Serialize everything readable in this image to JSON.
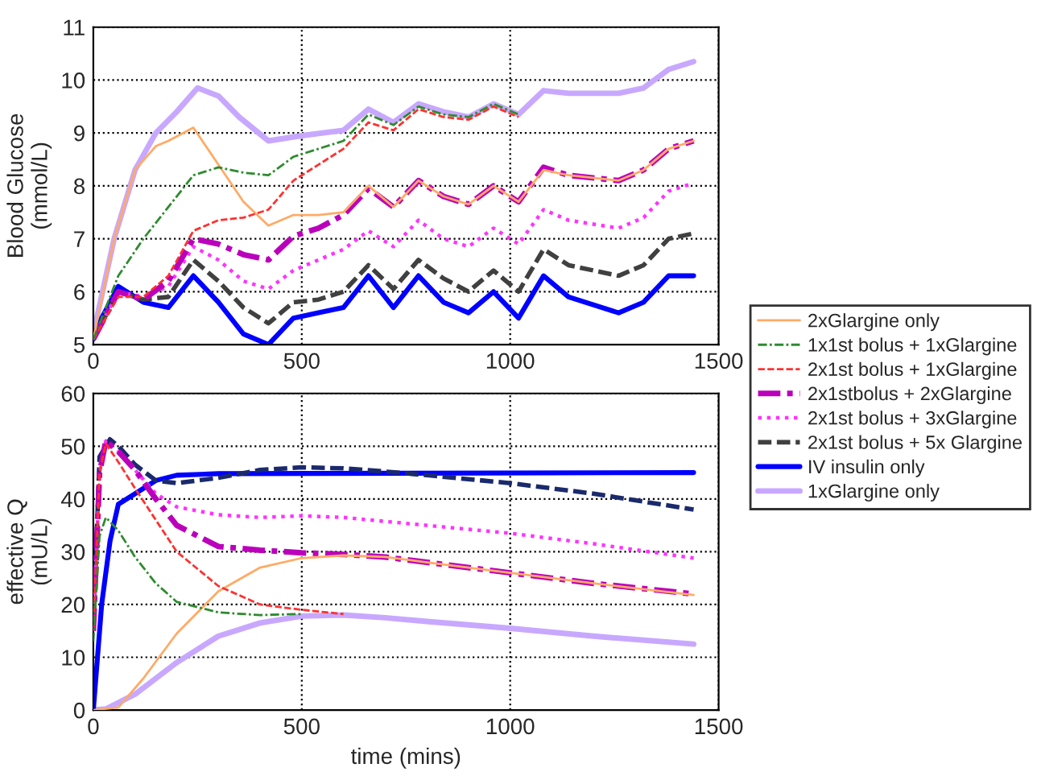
{
  "chart_data": [
    {
      "type": "line",
      "ylabel": "Blood Glucose\n(mmol/L)",
      "xlim": [
        0,
        1500
      ],
      "xticks": [
        0,
        500,
        1000,
        1500
      ],
      "ylim": [
        5,
        11
      ],
      "yticks": [
        5,
        6,
        7,
        8,
        9,
        10,
        11
      ],
      "grid": true,
      "legend": "right",
      "series": [
        {
          "name": "2xGlargine only",
          "color": "#ffaa66",
          "line_style": "solid",
          "x": [
            0,
            50,
            100,
            150,
            180,
            240,
            300,
            360,
            420,
            480,
            540,
            600,
            660,
            720,
            780,
            840,
            900,
            960,
            1020,
            1080,
            1140,
            1260,
            1320,
            1380,
            1440
          ],
          "values": [
            5.1,
            7.0,
            8.3,
            8.75,
            8.85,
            9.1,
            8.4,
            7.7,
            7.25,
            7.45,
            7.45,
            7.5,
            8.0,
            7.6,
            8.1,
            7.8,
            7.65,
            8.0,
            7.7,
            8.3,
            8.2,
            8.1,
            8.3,
            8.7,
            8.85
          ]
        },
        {
          "name": "1x1st bolus + 1xGlargine",
          "color": "#2e8b2e",
          "line_style": "dashdot",
          "x": [
            0,
            60,
            120,
            180,
            240,
            300,
            360,
            420,
            480,
            540,
            600,
            660,
            720,
            780,
            840,
            900,
            960,
            1020
          ],
          "values": [
            5.1,
            6.3,
            7.0,
            7.6,
            8.2,
            8.35,
            8.25,
            8.2,
            8.55,
            8.7,
            8.85,
            9.35,
            9.15,
            9.5,
            9.35,
            9.3,
            9.55,
            9.35
          ]
        },
        {
          "name": "2x1st bolus + 1xGlargine",
          "color": "#ff3030",
          "line_style": "dashed",
          "x": [
            0,
            60,
            120,
            180,
            240,
            300,
            360,
            420,
            480,
            540,
            600,
            660,
            720,
            780,
            840,
            900,
            960,
            1020
          ],
          "values": [
            5.1,
            5.9,
            5.9,
            6.3,
            7.15,
            7.35,
            7.4,
            7.55,
            8.1,
            8.4,
            8.7,
            9.2,
            9.05,
            9.45,
            9.3,
            9.25,
            9.5,
            9.3
          ]
        },
        {
          "name": "2x1stbolus + 2xGlargine",
          "color": "#bb00bb",
          "line_style": "dashdot",
          "x": [
            0,
            60,
            120,
            180,
            240,
            300,
            360,
            420,
            480,
            540,
            600,
            660,
            720,
            780,
            840,
            900,
            960,
            1020,
            1080,
            1140,
            1260,
            1320,
            1380,
            1440
          ],
          "values": [
            5.1,
            6.0,
            5.85,
            6.2,
            7.0,
            6.9,
            6.7,
            6.6,
            7.05,
            7.2,
            7.45,
            7.95,
            7.6,
            8.1,
            7.8,
            7.65,
            8.0,
            7.7,
            8.35,
            8.2,
            8.1,
            8.3,
            8.7,
            8.85
          ]
        },
        {
          "name": "2x1st bolus + 3xGlargine",
          "color": "#ff33ff",
          "line_style": "dotted",
          "x": [
            0,
            60,
            120,
            180,
            240,
            300,
            360,
            420,
            480,
            540,
            600,
            660,
            720,
            780,
            840,
            900,
            960,
            1020,
            1080,
            1140,
            1260,
            1320,
            1380,
            1440
          ],
          "values": [
            5.1,
            6.0,
            5.9,
            6.1,
            6.85,
            6.6,
            6.2,
            6.05,
            6.4,
            6.6,
            6.8,
            7.15,
            6.85,
            7.35,
            7.0,
            6.85,
            7.2,
            6.9,
            7.55,
            7.35,
            7.2,
            7.4,
            7.9,
            8.05
          ]
        },
        {
          "name": "2x1st bolus + 5x Glargine",
          "color": "#404040",
          "line_style": "dashed",
          "x": [
            0,
            60,
            120,
            180,
            240,
            300,
            360,
            420,
            480,
            540,
            600,
            660,
            720,
            780,
            840,
            900,
            960,
            1020,
            1080,
            1140,
            1260,
            1320,
            1380,
            1440
          ],
          "values": [
            5.1,
            6.0,
            5.85,
            5.9,
            6.6,
            6.2,
            5.7,
            5.4,
            5.8,
            5.85,
            6.0,
            6.5,
            6.05,
            6.6,
            6.25,
            6.0,
            6.4,
            6.0,
            6.8,
            6.5,
            6.3,
            6.5,
            7.0,
            7.1
          ]
        },
        {
          "name": "IV insulin only",
          "color": "#0000ff",
          "line_style": "solid",
          "x": [
            0,
            20,
            60,
            120,
            180,
            240,
            300,
            360,
            420,
            480,
            540,
            600,
            660,
            720,
            780,
            840,
            900,
            960,
            1020,
            1080,
            1140,
            1260,
            1320,
            1380,
            1440
          ],
          "values": [
            5.1,
            5.5,
            6.1,
            5.8,
            5.7,
            6.3,
            5.8,
            5.2,
            5.0,
            5.5,
            5.6,
            5.7,
            6.3,
            5.7,
            6.3,
            5.8,
            5.6,
            6.0,
            5.5,
            6.3,
            5.9,
            5.6,
            5.8,
            6.3,
            6.3
          ]
        },
        {
          "name": "1xGlargine only",
          "color": "#c8a8ff",
          "line_style": "solid",
          "x": [
            0,
            50,
            100,
            150,
            200,
            250,
            300,
            350,
            420,
            500,
            600,
            660,
            720,
            780,
            840,
            900,
            960,
            1020,
            1080,
            1140,
            1260,
            1320,
            1380,
            1440
          ],
          "values": [
            5.2,
            7.0,
            8.3,
            9.0,
            9.4,
            9.85,
            9.7,
            9.3,
            8.85,
            8.95,
            9.05,
            9.45,
            9.2,
            9.55,
            9.4,
            9.3,
            9.55,
            9.35,
            9.8,
            9.75,
            9.75,
            9.85,
            10.2,
            10.35
          ]
        }
      ]
    },
    {
      "type": "line",
      "xlabel": "time (mins)",
      "ylabel": "effective Q\n(mU/L)",
      "xlim": [
        0,
        1500
      ],
      "xticks": [
        0,
        500,
        1000,
        1500
      ],
      "ylim": [
        0,
        60
      ],
      "yticks": [
        0,
        10,
        20,
        30,
        40,
        50,
        60
      ],
      "grid": true,
      "series": [
        {
          "color": "#ffaa66",
          "line_style": "solid",
          "x": [
            0,
            60,
            120,
            200,
            300,
            400,
            500,
            600,
            700,
            800,
            1000,
            1200,
            1440
          ],
          "values": [
            0,
            0.5,
            6,
            14.5,
            22.5,
            27,
            28.8,
            29.3,
            29,
            28,
            26,
            24,
            21.8
          ]
        },
        {
          "color": "#2e8b2e",
          "line_style": "dashdot",
          "x": [
            0,
            15,
            30,
            60,
            100,
            150,
            200,
            300,
            400,
            500
          ],
          "values": [
            13,
            33,
            36.5,
            34,
            29,
            24,
            20.5,
            18.5,
            18,
            18.2
          ]
        },
        {
          "color": "#ff3030",
          "line_style": "dashed",
          "x": [
            0,
            15,
            30,
            60,
            100,
            150,
            200,
            300,
            400,
            500,
            600
          ],
          "values": [
            15,
            45,
            50.5,
            47,
            42,
            36,
            30,
            23.5,
            20,
            19,
            18.2
          ]
        },
        {
          "color": "#bb00bb",
          "line_style": "dashdot",
          "x": [
            0,
            15,
            30,
            60,
            100,
            150,
            200,
            300,
            400,
            500,
            600,
            700,
            800,
            1000,
            1200,
            1440
          ],
          "values": [
            15,
            45,
            51,
            49,
            45.5,
            40,
            35,
            31,
            30.3,
            29.8,
            29.5,
            29,
            28,
            26,
            24,
            22
          ]
        },
        {
          "color": "#ff33ff",
          "line_style": "dotted",
          "x": [
            0,
            15,
            30,
            60,
            100,
            150,
            200,
            300,
            400,
            500,
            600,
            800,
            1000,
            1200,
            1440
          ],
          "values": [
            15,
            45,
            51,
            49,
            45.5,
            41,
            38.5,
            37,
            36.5,
            36.8,
            36.5,
            35,
            33.5,
            31.5,
            28.8
          ]
        },
        {
          "color": "#1a2a6c",
          "line_style": "dashed",
          "x": [
            0,
            15,
            40,
            60,
            100,
            150,
            200,
            300,
            400,
            500,
            600,
            700,
            800,
            1000,
            1200,
            1440
          ],
          "values": [
            15,
            48,
            51.3,
            50,
            46.5,
            43.5,
            43,
            44,
            45.5,
            46,
            45.8,
            45.2,
            44.5,
            43,
            41,
            38
          ]
        },
        {
          "color": "#0000ff",
          "line_style": "solid",
          "x": [
            0,
            20,
            40,
            60,
            100,
            150,
            200,
            300,
            1440
          ],
          "values": [
            0,
            20,
            32,
            39,
            41,
            43.5,
            44.5,
            44.8,
            45
          ]
        },
        {
          "color": "#c8a8ff",
          "line_style": "solid",
          "x": [
            0,
            30,
            100,
            200,
            300,
            400,
            500,
            600,
            700,
            800,
            1000,
            1200,
            1440
          ],
          "values": [
            0,
            0.2,
            3,
            9,
            14,
            16.5,
            17.8,
            18,
            17.5,
            16.8,
            15.5,
            14,
            12.5
          ]
        }
      ]
    }
  ]
}
